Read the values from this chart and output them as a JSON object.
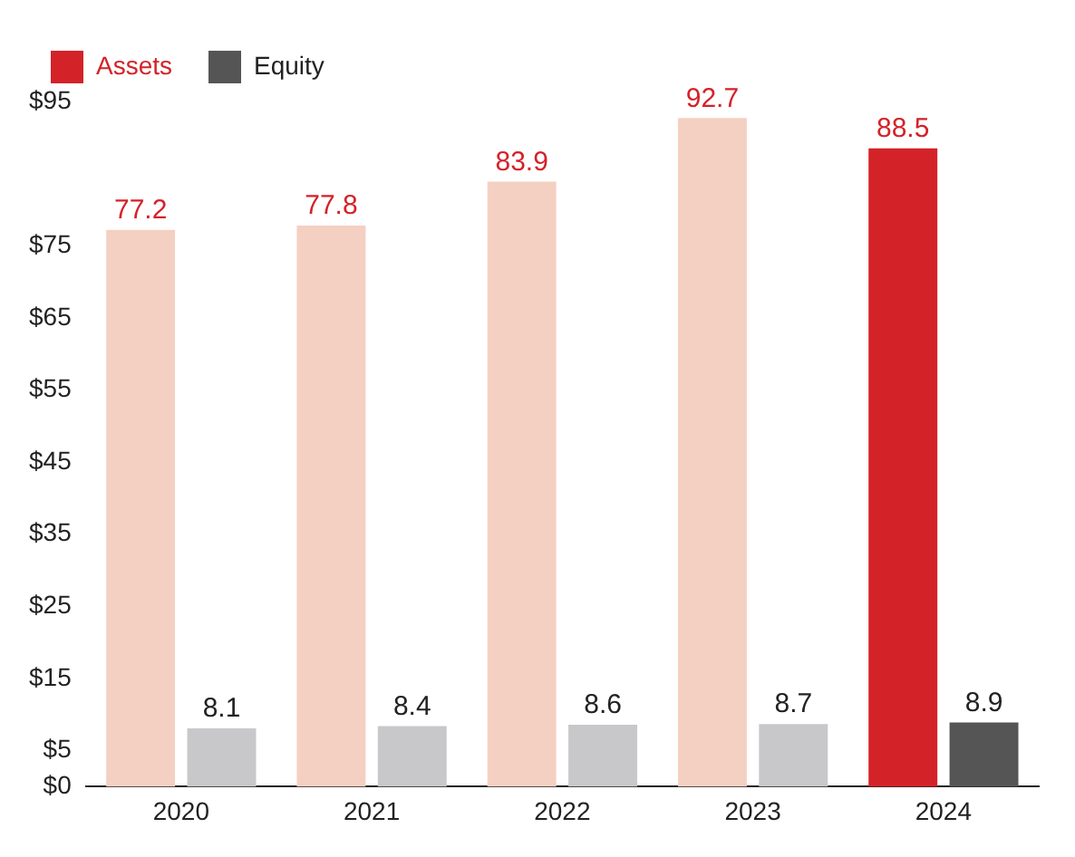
{
  "chart_data": {
    "type": "bar",
    "categories": [
      "2020",
      "2021",
      "2022",
      "2023",
      "2024"
    ],
    "series": [
      {
        "name": "Assets",
        "colors": [
          "#f4d0c2",
          "#f4d0c2",
          "#f4d0c2",
          "#f4d0c2",
          "#d42229"
        ],
        "values": [
          77.2,
          77.8,
          83.9,
          92.7,
          88.5
        ]
      },
      {
        "name": "Equity",
        "colors": [
          "#c8c8ca",
          "#c8c8ca",
          "#c8c8ca",
          "#c8c8ca",
          "#555555"
        ],
        "values": [
          8.1,
          8.4,
          8.6,
          8.7,
          8.9
        ]
      }
    ],
    "ylim": [
      0,
      95
    ],
    "yticks": [
      {
        "value": 0,
        "label": "$0"
      },
      {
        "value": 5,
        "label": "$5"
      },
      {
        "value": 15,
        "label": "$15"
      },
      {
        "value": 25,
        "label": "$25"
      },
      {
        "value": 35,
        "label": "$35"
      },
      {
        "value": 45,
        "label": "$45"
      },
      {
        "value": 55,
        "label": "$55"
      },
      {
        "value": 65,
        "label": "$65"
      },
      {
        "value": 75,
        "label": "$75"
      },
      {
        "value": 95,
        "label": "$95"
      }
    ],
    "grid": false,
    "legend": "top left",
    "data_labels": true
  }
}
